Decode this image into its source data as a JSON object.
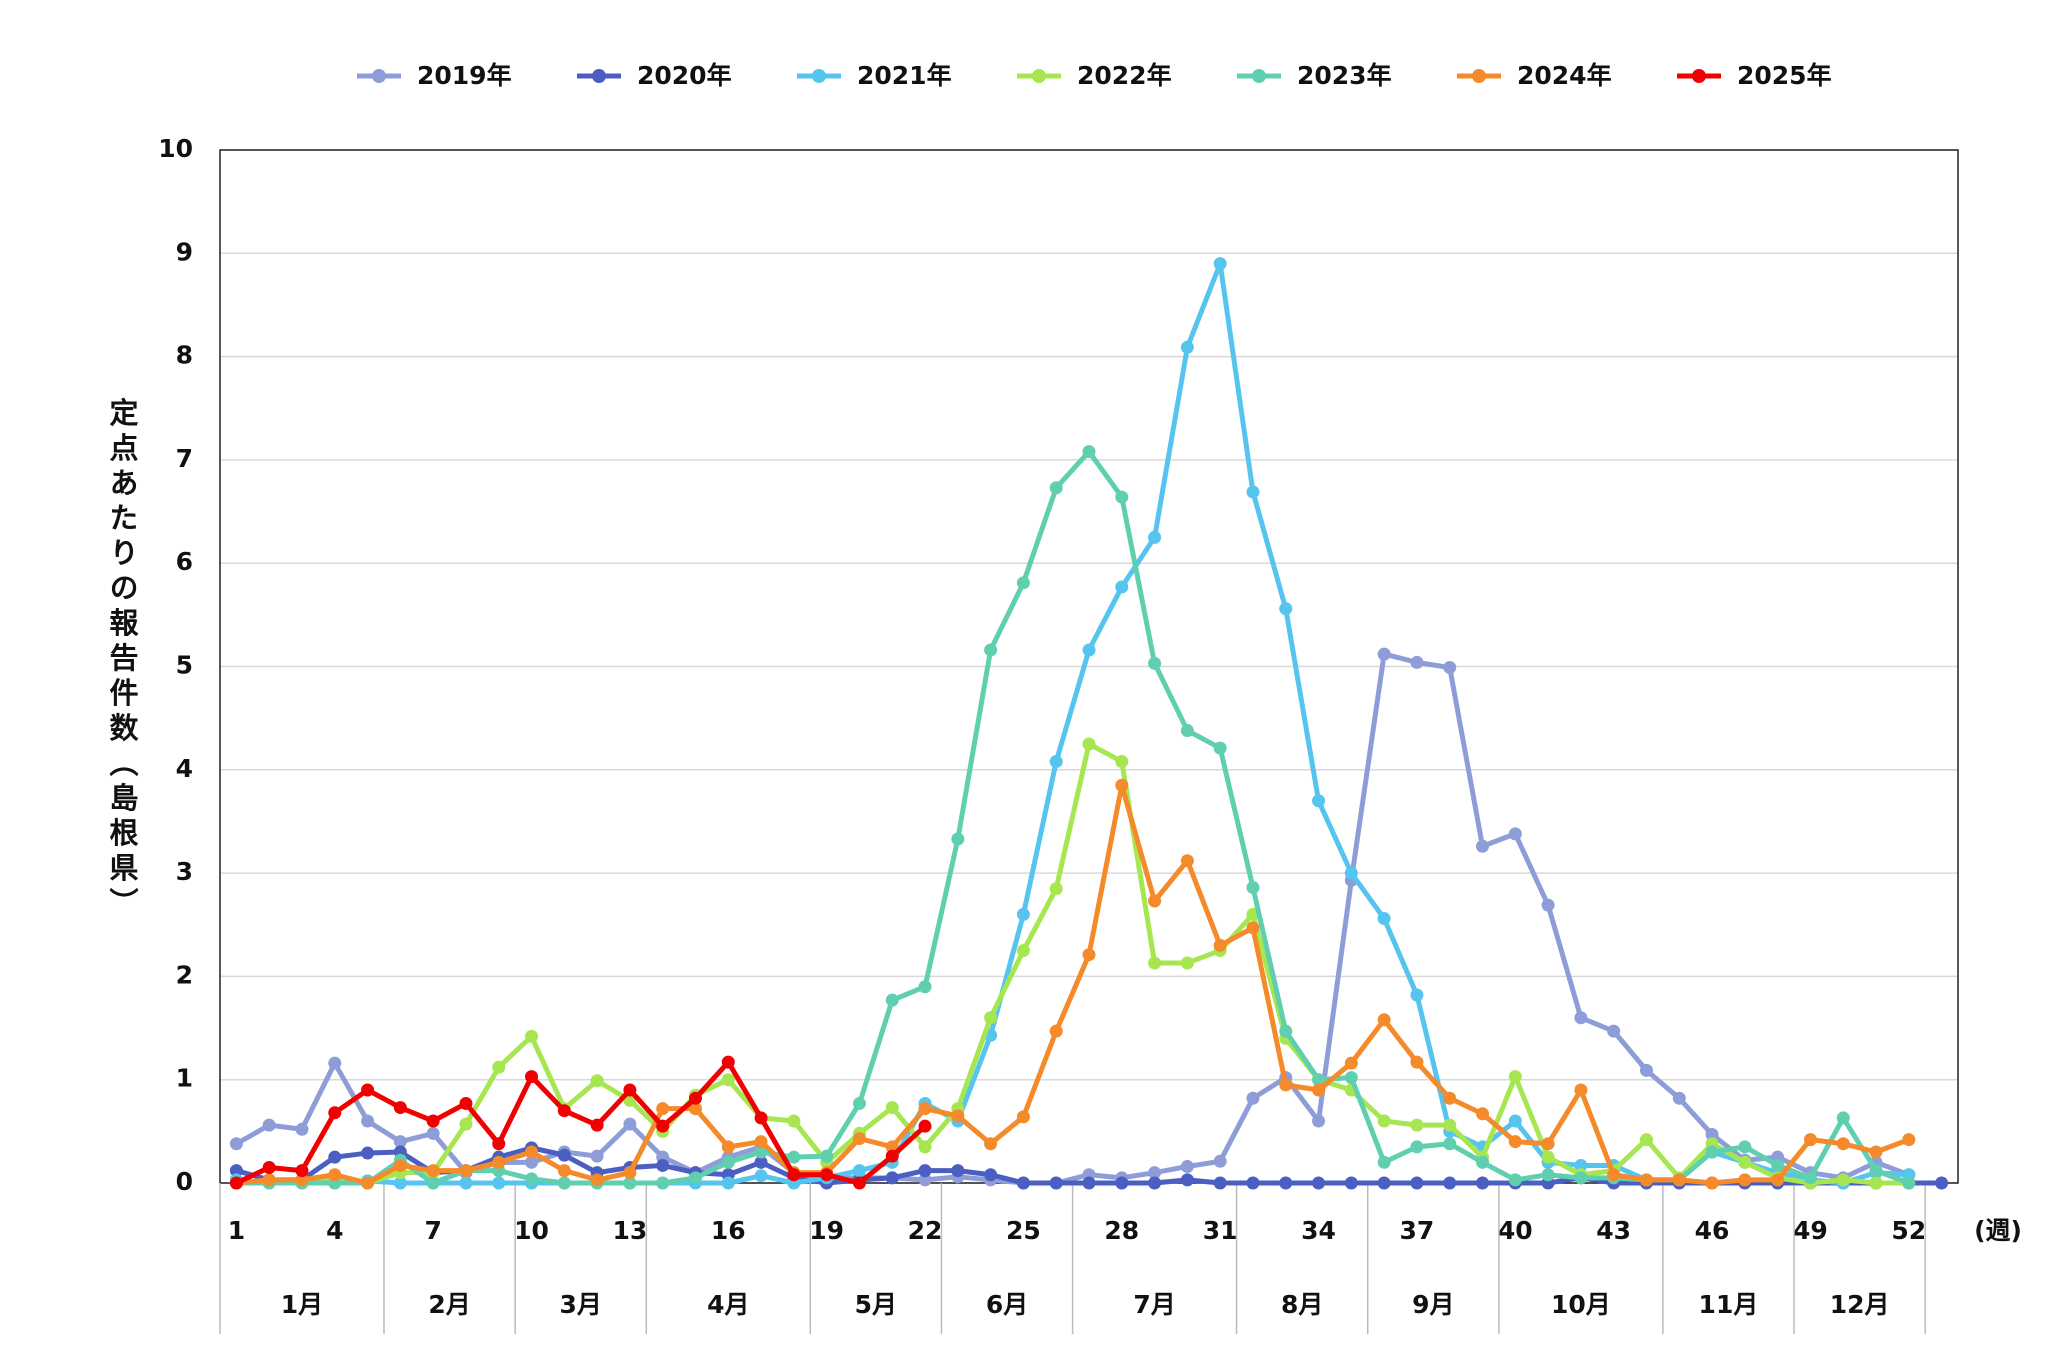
{
  "chart_data": {
    "type": "line",
    "y_label": "定点あたりの報告件数（島根県）",
    "x_label": "(週)",
    "x": [
      1,
      2,
      3,
      4,
      5,
      6,
      7,
      8,
      9,
      10,
      11,
      12,
      13,
      14,
      15,
      16,
      17,
      18,
      19,
      20,
      21,
      22,
      23,
      24,
      25,
      26,
      27,
      28,
      29,
      30,
      31,
      32,
      33,
      34,
      35,
      36,
      37,
      38,
      39,
      40,
      41,
      42,
      43,
      44,
      45,
      46,
      47,
      48,
      49,
      50,
      51,
      52,
      53
    ],
    "xlim": [
      0.5,
      53.5
    ],
    "xticks": [
      1,
      4,
      7,
      10,
      13,
      16,
      19,
      22,
      25,
      28,
      31,
      34,
      37,
      40,
      43,
      46,
      49,
      52
    ],
    "ylim": [
      0,
      10
    ],
    "yticks": [
      0,
      1,
      2,
      3,
      4,
      5,
      6,
      7,
      8,
      9,
      10
    ],
    "grid": true,
    "legend": "top",
    "months": [
      "1月",
      "2月",
      "3月",
      "4月",
      "5月",
      "6月",
      "7月",
      "8月",
      "9月",
      "10月",
      "11月",
      "12月"
    ],
    "series": [
      {
        "name": "2019年",
        "color": "#8e9dd8",
        "values": [
          0.38,
          0.56,
          0.52,
          1.16,
          0.6,
          0.4,
          0.48,
          0.1,
          0.2,
          0.2,
          0.3,
          0.26,
          0.57,
          0.25,
          0.1,
          0.25,
          0.35,
          0.1,
          0.05,
          0.05,
          0.05,
          0.03,
          0.06,
          0.03,
          0,
          0,
          0.08,
          0.05,
          0.1,
          0.16,
          0.21,
          0.82,
          1.02,
          0.6,
          2.93,
          5.12,
          5.04,
          4.99,
          3.26,
          3.38,
          2.69,
          1.6,
          1.47,
          1.09,
          0.82,
          0.47,
          0.22,
          0.25,
          0.1,
          0.05,
          0.2,
          0.08,
          null
        ]
      },
      {
        "name": "2020年",
        "color": "#4a5fc1",
        "values": [
          0.12,
          0.03,
          0.03,
          0.25,
          0.29,
          0.3,
          0.1,
          0.12,
          0.25,
          0.34,
          0.27,
          0.1,
          0.15,
          0.17,
          0.1,
          0.08,
          0.2,
          0.05,
          0,
          0.03,
          0.05,
          0.12,
          0.12,
          0.08,
          0,
          0,
          0,
          0,
          0,
          0.03,
          0,
          0,
          0,
          0,
          0,
          0,
          0,
          0,
          0,
          0,
          0,
          0.05,
          0,
          0,
          0,
          0,
          0,
          0,
          0,
          0,
          0,
          0,
          0
        ]
      },
      {
        "name": "2021年",
        "color": "#55c4ef",
        "values": [
          0.03,
          0,
          0,
          0,
          0.02,
          0,
          0,
          0,
          0,
          0,
          0,
          0,
          0,
          0,
          0,
          0,
          0.07,
          0,
          0.05,
          0.12,
          0.2,
          0.77,
          0.6,
          1.43,
          2.6,
          4.08,
          5.16,
          5.77,
          6.25,
          8.09,
          8.9,
          6.69,
          5.56,
          3.7,
          3.0,
          2.56,
          1.82,
          0.5,
          0.35,
          0.6,
          0.2,
          0.17,
          0.17,
          0.03,
          0.03,
          0.3,
          0.2,
          0.1,
          0.03,
          0,
          0.1,
          0.08,
          null
        ]
      },
      {
        "name": "2022年",
        "color": "#a6e650",
        "values": [
          0,
          0.03,
          0.03,
          0.03,
          0,
          0.1,
          0.1,
          0.57,
          1.12,
          1.42,
          0.72,
          0.99,
          0.8,
          0.5,
          0.85,
          1.0,
          0.63,
          0.6,
          0.2,
          0.48,
          0.73,
          0.35,
          0.72,
          1.6,
          2.25,
          2.85,
          4.25,
          4.08,
          2.13,
          2.13,
          2.25,
          2.6,
          1.4,
          1.0,
          0.9,
          0.6,
          0.56,
          0.56,
          0.25,
          1.03,
          0.25,
          0.08,
          0.12,
          0.42,
          0.05,
          0.38,
          0.2,
          0.05,
          0,
          0.03,
          0,
          0,
          null
        ]
      },
      {
        "name": "2023年",
        "color": "#5fcfb0",
        "values": [
          0,
          0,
          0,
          0,
          0,
          0.22,
          0,
          0.12,
          0.12,
          0.04,
          0,
          0,
          0,
          0,
          0.05,
          0.2,
          0.3,
          0.25,
          0.26,
          0.77,
          1.77,
          1.9,
          3.33,
          5.16,
          5.81,
          6.73,
          7.08,
          6.64,
          5.03,
          4.38,
          4.21,
          2.86,
          1.47,
          1.0,
          1.02,
          0.2,
          0.35,
          0.38,
          0.2,
          0.03,
          0.08,
          0.05,
          0.05,
          0.03,
          0.03,
          0.3,
          0.35,
          0.17,
          0.05,
          0.63,
          0.12,
          0,
          null
        ]
      },
      {
        "name": "2024年",
        "color": "#f58a2a",
        "values": [
          0,
          0.03,
          0.03,
          0.08,
          0,
          0.17,
          0.12,
          0.12,
          0.2,
          0.3,
          0.12,
          0.03,
          0.1,
          0.72,
          0.72,
          0.35,
          0.4,
          0.1,
          0.1,
          0.43,
          0.35,
          0.72,
          0.65,
          0.38,
          0.64,
          1.47,
          2.21,
          3.85,
          2.73,
          3.12,
          2.3,
          2.47,
          0.95,
          0.9,
          1.16,
          1.58,
          1.17,
          0.82,
          0.67,
          0.4,
          0.38,
          0.9,
          0.08,
          0.03,
          0.03,
          0,
          0.03,
          0.03,
          0.42,
          0.38,
          0.3,
          0.42,
          null
        ]
      },
      {
        "name": "2025年",
        "color": "#f00000",
        "values": [
          0,
          0.15,
          0.12,
          0.68,
          0.9,
          0.73,
          0.6,
          0.77,
          0.38,
          1.03,
          0.7,
          0.56,
          0.9,
          0.55,
          0.82,
          1.17,
          0.63,
          0.08,
          0.08,
          0,
          0.26,
          0.55,
          null,
          null,
          null,
          null,
          null,
          null,
          null,
          null,
          null,
          null,
          null,
          null,
          null,
          null,
          null,
          null,
          null,
          null,
          null,
          null,
          null,
          null,
          null,
          null,
          null,
          null,
          null,
          null,
          null,
          null,
          null
        ]
      }
    ]
  }
}
